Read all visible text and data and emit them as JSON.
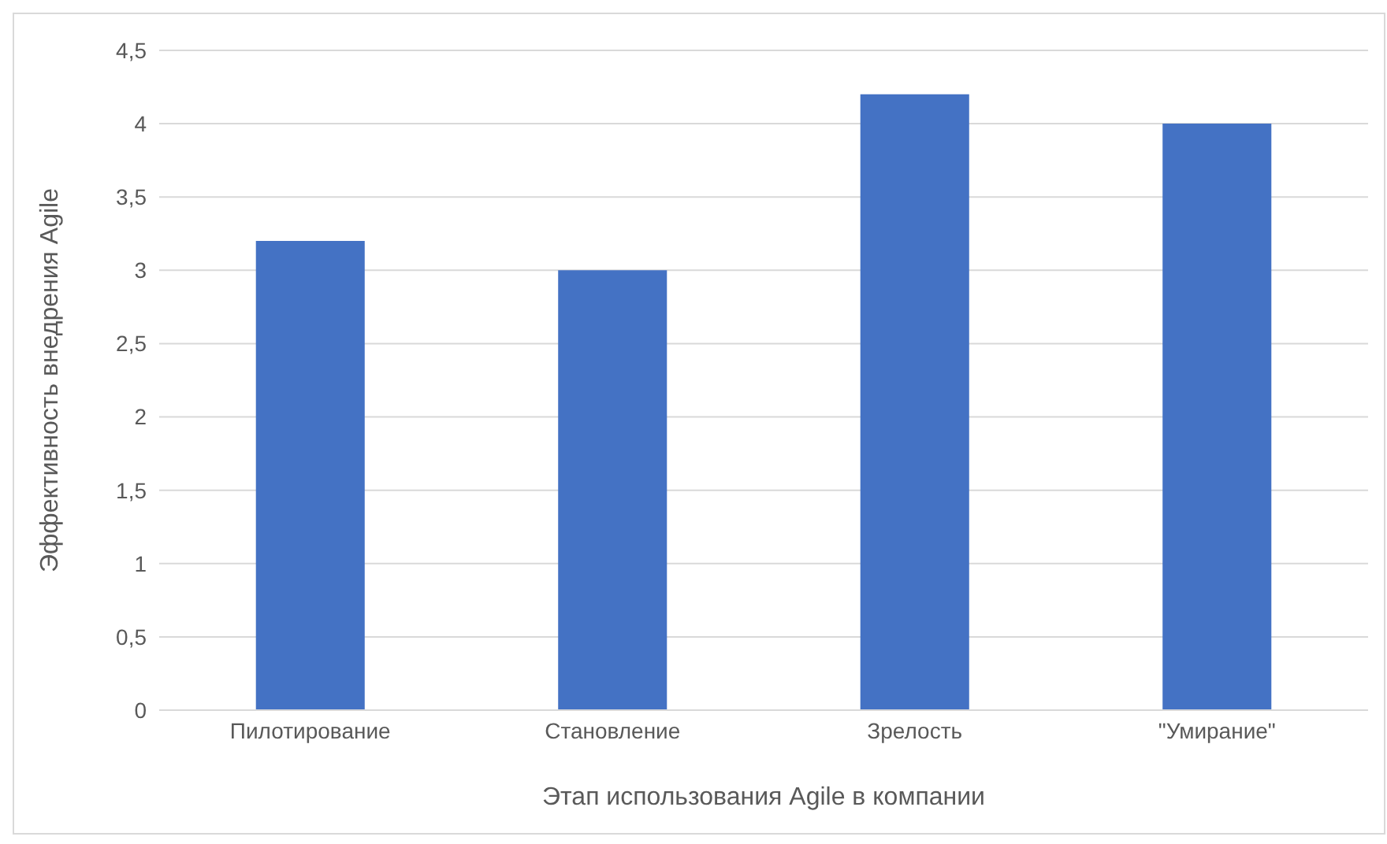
{
  "chart_data": {
    "type": "bar",
    "xlabel": "Этап использования Agile в компании",
    "ylabel": "Эффективность внедрения Agile",
    "categories": [
      "Пилотирование",
      "Становление",
      "Зрелость",
      "\"Умирание\""
    ],
    "values": [
      3.2,
      3.0,
      4.2,
      4.0
    ],
    "color": "#4472c4",
    "ylim": [
      0,
      4.5
    ],
    "yticks": [
      {
        "value": 0,
        "label": "0"
      },
      {
        "value": 0.5,
        "label": "0,5"
      },
      {
        "value": 1,
        "label": "1"
      },
      {
        "value": 1.5,
        "label": "1,5"
      },
      {
        "value": 2,
        "label": "2"
      },
      {
        "value": 2.5,
        "label": "2,5"
      },
      {
        "value": 3,
        "label": "3"
      },
      {
        "value": 3.5,
        "label": "3,5"
      },
      {
        "value": 4,
        "label": "4"
      },
      {
        "value": 4.5,
        "label": "4,5"
      }
    ],
    "grid": "y"
  }
}
